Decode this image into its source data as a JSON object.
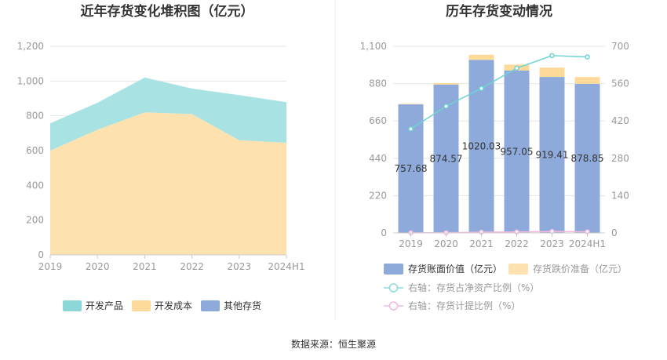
{
  "source": "数据来源：恒生聚源",
  "chart_data": [
    {
      "type": "area",
      "stacked": true,
      "title": "近年存货变化堆积图（亿元）",
      "categories": [
        "2019",
        "2020",
        "2021",
        "2022",
        "2023",
        "2024H1"
      ],
      "ylim": [
        0,
        1200
      ],
      "yticks": [
        "0",
        "200",
        "400",
        "600",
        "800",
        "1,000",
        "1,200"
      ],
      "grid": true,
      "legend_position": "bottom",
      "series": [
        {
          "name": "其他存货",
          "color": "#8eaadb",
          "values": [
            0,
            0,
            0,
            0,
            0,
            0
          ]
        },
        {
          "name": "开发成本",
          "color": "#fde2b0",
          "values": [
            600,
            720,
            820,
            810,
            660,
            645
          ]
        },
        {
          "name": "开发产品",
          "color": "#a8e2e2",
          "values": [
            157,
            155,
            200,
            147,
            259,
            234
          ]
        }
      ],
      "legend": [
        {
          "name": "开发产品",
          "color": "#8cd8d8"
        },
        {
          "name": "开发成本",
          "color": "#fdd99a"
        },
        {
          "name": "其他存货",
          "color": "#8eaadb"
        }
      ]
    },
    {
      "type": "bar",
      "title": "历年存货变动情况",
      "categories": [
        "2019",
        "2020",
        "2021",
        "2022",
        "2023",
        "2024H1"
      ],
      "ylim": [
        0,
        1100
      ],
      "yticks": [
        "0",
        "220",
        "440",
        "660",
        "880",
        "1,100"
      ],
      "y2lim": [
        0,
        700
      ],
      "y2ticks": [
        "0",
        "140",
        "280",
        "420",
        "560",
        "700"
      ],
      "grid": true,
      "legend_position": "bottom",
      "series": [
        {
          "name": "存货账面价值（亿元）",
          "axis": "left",
          "kind": "bar",
          "color": "#8eaadb",
          "values": [
            757.68,
            874.57,
            1020.03,
            957.05,
            919.41,
            878.85
          ],
          "labels": [
            "757.68",
            "874.57",
            "1020.03",
            "957.05",
            "919.41",
            "878.85"
          ]
        },
        {
          "name": "存货跌价准备（亿元）",
          "axis": "left",
          "kind": "bar",
          "color": "#fdd99a",
          "values": [
            3,
            8,
            30,
            35,
            55,
            40
          ]
        },
        {
          "name": "右轴：存货占净资产比例（%）",
          "axis": "right",
          "kind": "line",
          "color": "#6fd3d3",
          "values": [
            390,
            475,
            542,
            618,
            665,
            660
          ]
        },
        {
          "name": "右轴：存货计提比例（%）",
          "axis": "right",
          "kind": "line",
          "color": "#f2b8e0",
          "values": [
            0.4,
            0.9,
            2.9,
            3.5,
            5.6,
            4.4
          ]
        }
      ],
      "legend": [
        {
          "name": "存货账面价值（亿元）",
          "color": "#8eaadb",
          "kind": "bar"
        },
        {
          "name": "存货跌价准备（亿元）",
          "color": "#fde2b0",
          "kind": "bar"
        },
        {
          "name": "右轴：存货占净资产比例（%）",
          "color": "#8cd8d8",
          "kind": "line"
        },
        {
          "name": "右轴：存货计提比例（%）",
          "color": "#f2b8e0",
          "kind": "line"
        }
      ]
    }
  ]
}
